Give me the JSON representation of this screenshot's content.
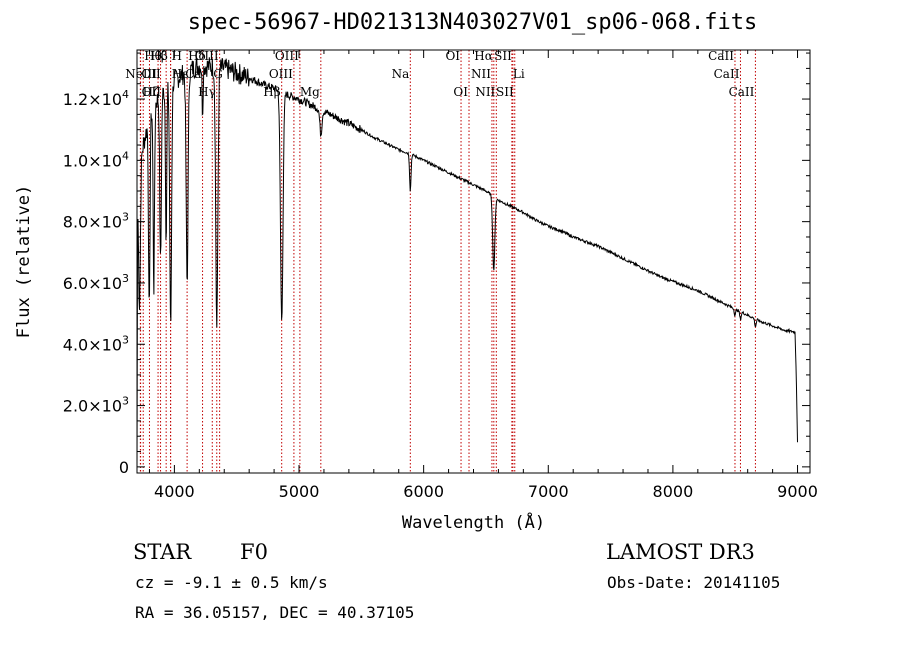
{
  "chart_data": {
    "type": "line",
    "title": "spec-56967-HD021313N403027V01_sp06-068.fits",
    "xlabel": "Wavelength (Å)",
    "ylabel": "Flux (relative)",
    "xlim": [
      3700,
      9100
    ],
    "ylim": [
      -200,
      13600
    ],
    "x_ticks": [
      4000,
      5000,
      6000,
      7000,
      8000,
      9000
    ],
    "y_ticks": [
      {
        "value": 0,
        "base": "0",
        "exp": ""
      },
      {
        "value": 2000,
        "base": "2.0×10",
        "exp": "3"
      },
      {
        "value": 4000,
        "base": "4.0×10",
        "exp": "3"
      },
      {
        "value": 6000,
        "base": "6.0×10",
        "exp": "3"
      },
      {
        "value": 8000,
        "base": "8.0×10",
        "exp": "3"
      },
      {
        "value": 10000,
        "base": "1.0×10",
        "exp": "4"
      },
      {
        "value": 12000,
        "base": "1.2×10",
        "exp": "4"
      }
    ],
    "continuum": [
      [
        3700,
        0
      ],
      [
        3705,
        9000
      ],
      [
        3720,
        9800
      ],
      [
        3750,
        10500
      ],
      [
        3800,
        11400
      ],
      [
        3850,
        11900
      ],
      [
        3900,
        12200
      ],
      [
        3950,
        12400
      ],
      [
        4000,
        12600
      ],
      [
        4100,
        12900
      ],
      [
        4200,
        13100
      ],
      [
        4300,
        13050
      ],
      [
        4400,
        13000
      ],
      [
        4500,
        12850
      ],
      [
        4600,
        12700
      ],
      [
        4700,
        12500
      ],
      [
        4800,
        12350
      ],
      [
        4900,
        12150
      ],
      [
        5000,
        12000
      ],
      [
        5100,
        11800
      ],
      [
        5200,
        11600
      ],
      [
        5300,
        11400
      ],
      [
        5400,
        11200
      ],
      [
        5500,
        11000
      ],
      [
        5600,
        10750
      ],
      [
        5700,
        10550
      ],
      [
        5800,
        10350
      ],
      [
        5900,
        10200
      ],
      [
        6000,
        10000
      ],
      [
        6100,
        9800
      ],
      [
        6200,
        9600
      ],
      [
        6300,
        9400
      ],
      [
        6400,
        9200
      ],
      [
        6500,
        9000
      ],
      [
        6600,
        8700
      ],
      [
        6700,
        8500
      ],
      [
        6800,
        8300
      ],
      [
        6900,
        8050
      ],
      [
        7000,
        7850
      ],
      [
        7100,
        7700
      ],
      [
        7200,
        7500
      ],
      [
        7300,
        7350
      ],
      [
        7400,
        7200
      ],
      [
        7500,
        7000
      ],
      [
        7600,
        6800
      ],
      [
        7700,
        6600
      ],
      [
        7800,
        6400
      ],
      [
        7900,
        6200
      ],
      [
        8000,
        6050
      ],
      [
        8100,
        5900
      ],
      [
        8200,
        5750
      ],
      [
        8300,
        5550
      ],
      [
        8400,
        5350
      ],
      [
        8500,
        5150
      ],
      [
        8600,
        4950
      ],
      [
        8700,
        4750
      ],
      [
        8800,
        4600
      ],
      [
        8900,
        4450
      ],
      [
        8980,
        4400
      ],
      [
        8990,
        3000
      ],
      [
        9000,
        800
      ]
    ],
    "absorption_lines": [
      {
        "w": 3720,
        "depth": 4500,
        "width": 10
      },
      {
        "w": 3798,
        "depth": 6500,
        "width": 8
      },
      {
        "w": 3835,
        "depth": 6000,
        "width": 8
      },
      {
        "w": 3889,
        "depth": 5500,
        "width": 9
      },
      {
        "w": 3934,
        "depth": 5000,
        "width": 7
      },
      {
        "w": 3970,
        "depth": 8000,
        "width": 10
      },
      {
        "w": 4102,
        "depth": 7000,
        "width": 11
      },
      {
        "w": 4226,
        "depth": 1500,
        "width": 6
      },
      {
        "w": 4340,
        "depth": 8500,
        "width": 12
      },
      {
        "w": 4861,
        "depth": 7500,
        "width": 14
      },
      {
        "w": 5175,
        "depth": 800,
        "width": 12
      },
      {
        "w": 5893,
        "depth": 1200,
        "width": 8
      },
      {
        "w": 6563,
        "depth": 2400,
        "width": 12
      },
      {
        "w": 8498,
        "depth": 200,
        "width": 8
      },
      {
        "w": 8542,
        "depth": 250,
        "width": 8
      },
      {
        "w": 8662,
        "depth": 250,
        "width": 8
      }
    ],
    "line_markers": [
      {
        "w": 3750,
        "label": "Hθ",
        "row": 0,
        "side": "right"
      },
      {
        "w": 3800,
        "label": "Hβ",
        "row": 0,
        "side": "right"
      },
      {
        "w": 3727,
        "label": "OII",
        "row": 1,
        "side": "right"
      },
      {
        "w": 3869,
        "label": "NeIII",
        "row": 1,
        "side": "left"
      },
      {
        "w": 3729,
        "label": "OII",
        "row": 2,
        "side": "right"
      },
      {
        "w": 3889,
        "label": "Hζ",
        "row": 2,
        "side": "left"
      },
      {
        "w": 3934,
        "label": "K",
        "row": 0,
        "side": "left"
      },
      {
        "w": 3969,
        "label": "H",
        "row": 0,
        "side": "right"
      },
      {
        "w": 3970,
        "label": "Hε",
        "row": 1,
        "side": "right"
      },
      {
        "w": 4102,
        "label": "Hδ",
        "row": 0,
        "side": "right"
      },
      {
        "w": 4226,
        "label": "Ca",
        "row": 1,
        "side": "left"
      },
      {
        "w": 4304,
        "label": "G",
        "row": 1,
        "side": "right"
      },
      {
        "w": 4340,
        "label": "Hγ",
        "row": 2,
        "side": "left"
      },
      {
        "w": 4363,
        "label": "OIII",
        "row": 0,
        "side": "left"
      },
      {
        "w": 4861,
        "label": "Hβ",
        "row": 2,
        "side": "left"
      },
      {
        "w": 4959,
        "label": "OIII",
        "row": 1,
        "side": "left"
      },
      {
        "w": 5007,
        "label": "OIII",
        "row": 0,
        "side": "left"
      },
      {
        "w": 5175,
        "label": "Mg",
        "row": 2,
        "side": "left"
      },
      {
        "w": 5893,
        "label": "Na",
        "row": 1,
        "side": "left"
      },
      {
        "w": 6300,
        "label": "OI",
        "row": 0,
        "side": "left"
      },
      {
        "w": 6364,
        "label": "OI",
        "row": 2,
        "side": "left"
      },
      {
        "w": 6548,
        "label": "NII",
        "row": 1,
        "side": "left"
      },
      {
        "w": 6563,
        "label": "Hα",
        "row": 0,
        "side": "left"
      },
      {
        "w": 6583,
        "label": "NII",
        "row": 2,
        "side": "left"
      },
      {
        "w": 6708,
        "label": "Li",
        "row": 1,
        "side": "right"
      },
      {
        "w": 6716,
        "label": "SII",
        "row": 0,
        "side": "left"
      },
      {
        "w": 6731,
        "label": "SII",
        "row": 2,
        "side": "left"
      },
      {
        "w": 8498,
        "label": "CaII",
        "row": 0,
        "side": "left"
      },
      {
        "w": 8542,
        "label": "CaII",
        "row": 1,
        "side": "left"
      },
      {
        "w": 8662,
        "label": "CaII",
        "row": 2,
        "side": "left"
      }
    ]
  },
  "info": {
    "object_type": "STAR",
    "spectral_class": "F0",
    "redshift": "cz = -9.1 ± 0.5 km/s",
    "coordinates": "RA =  36.05157, DEC =  40.37105",
    "survey": "LAMOST DR3",
    "obs_date": "Obs-Date: 20141105"
  }
}
